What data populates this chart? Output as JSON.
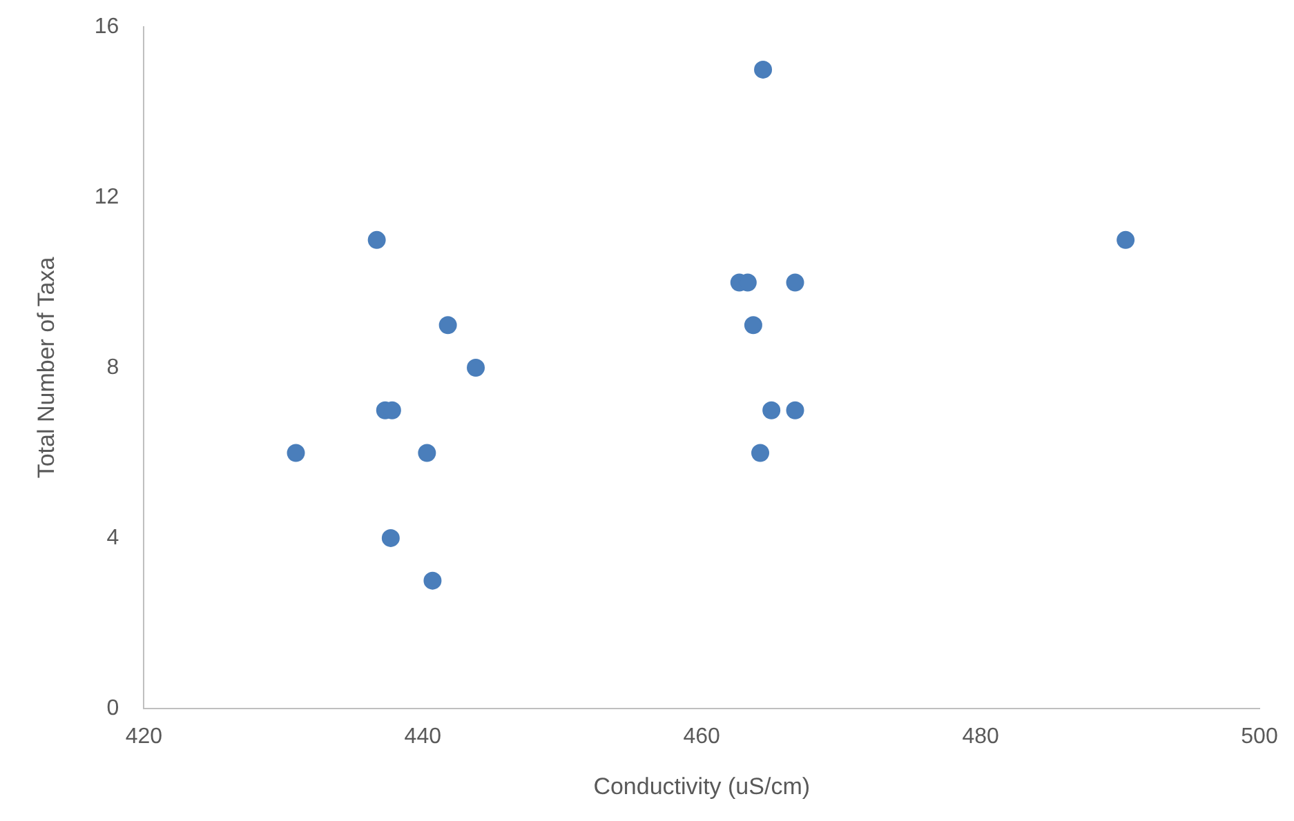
{
  "chart_data": {
    "type": "scatter",
    "xlabel": "Conductivity (uS/cm)",
    "ylabel": "Total Number of Taxa",
    "x": [
      430.9,
      436.7,
      437.3,
      437.8,
      437.7,
      440.3,
      440.7,
      441.8,
      443.8,
      462.7,
      463.3,
      463.7,
      464.2,
      464.4,
      465.0,
      466.7,
      466.7,
      490.4
    ],
    "series": [
      {
        "color": "#4a7ebb",
        "values": [
          6,
          11,
          7,
          7,
          4,
          6,
          3,
          9,
          8,
          10,
          10,
          9,
          6,
          15,
          7,
          10,
          7,
          11
        ]
      }
    ],
    "xlim": [
      420,
      500
    ],
    "xticks": [
      420,
      440,
      460,
      480,
      500
    ],
    "ylim": [
      0,
      16
    ],
    "yticks": [
      0,
      4,
      8,
      12,
      16
    ],
    "grid": false,
    "legend": false,
    "marker": "circle"
  }
}
